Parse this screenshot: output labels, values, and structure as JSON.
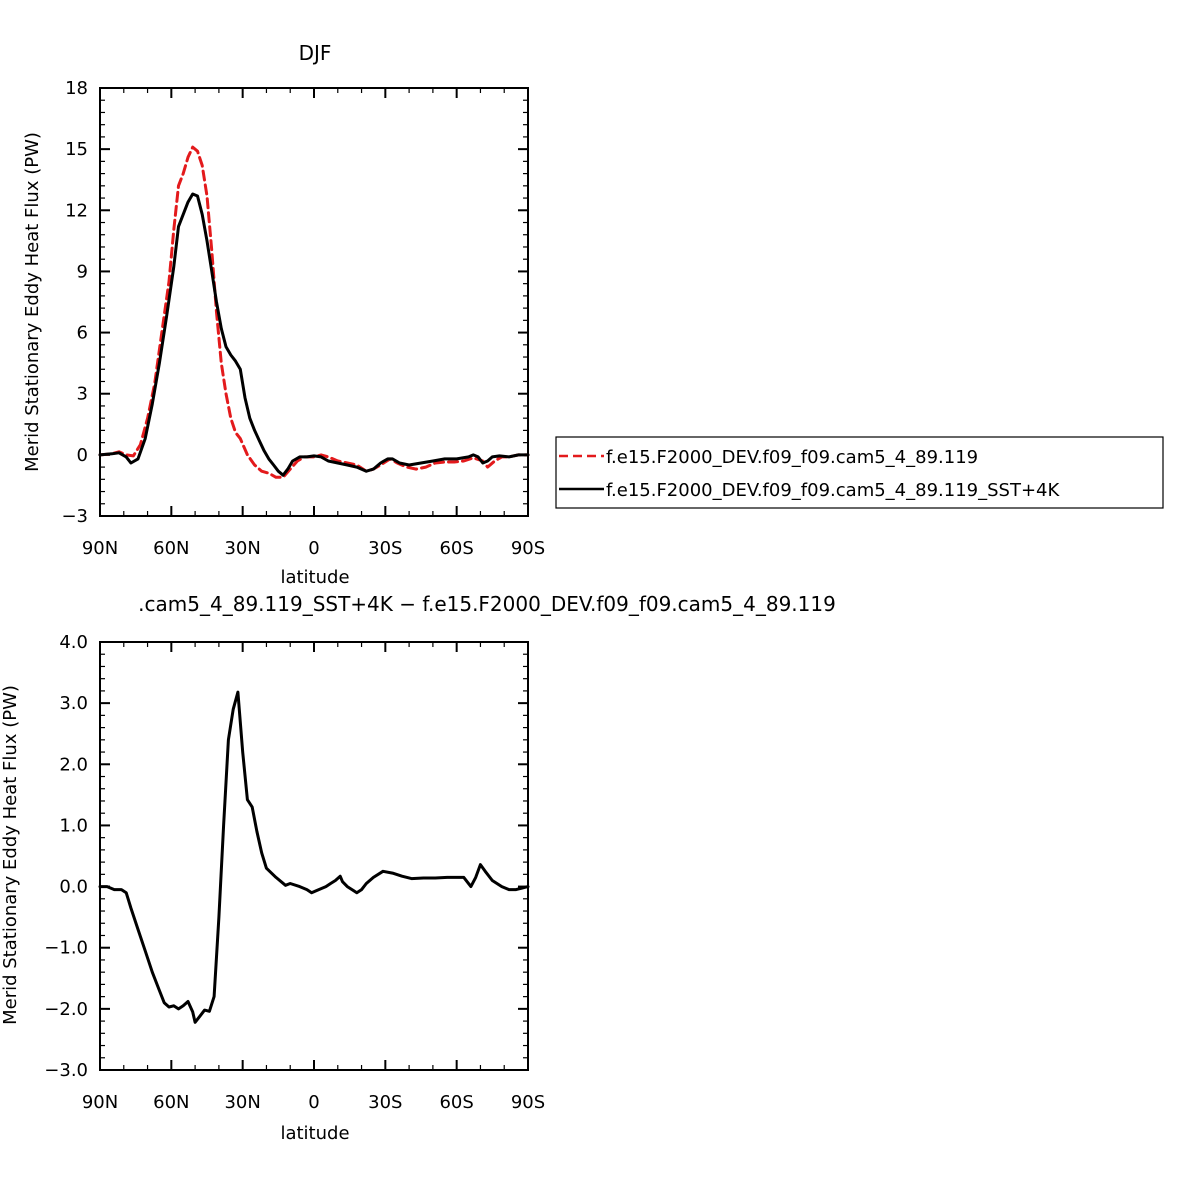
{
  "chart_data": [
    {
      "type": "line",
      "title": "DJF",
      "xlabel": "latitude",
      "ylabel": "Merid Stationary Eddy Heat Flux (PW)",
      "xlim": [
        90,
        -90
      ],
      "ylim": [
        -3,
        18
      ],
      "x_ticks": [
        90,
        60,
        30,
        0,
        -30,
        -60,
        -90
      ],
      "x_tick_labels": [
        "90N",
        "60N",
        "30N",
        "0",
        "30S",
        "60S",
        "90S"
      ],
      "y_ticks": [
        -3,
        0,
        3,
        6,
        9,
        12,
        15,
        18
      ],
      "y_tick_labels": [
        "−3",
        "0",
        "3",
        "6",
        "9",
        "12",
        "15",
        "18"
      ],
      "grid": false,
      "legend_position": "right",
      "series": [
        {
          "name": "f.e15.F2000_DEV.f09_f09.cam5_4_89.119",
          "color": "#e31a1c",
          "dash": "dashed",
          "points": [
            [
              90,
              0
            ],
            [
              85,
              0.05
            ],
            [
              82,
              0.15
            ],
            [
              79,
              0
            ],
            [
              76,
              -0.05
            ],
            [
              73,
              0.5
            ],
            [
              70,
              1.8
            ],
            [
              67,
              3.5
            ],
            [
              64,
              6
            ],
            [
              61,
              8.5
            ],
            [
              59,
              11
            ],
            [
              57,
              13.2
            ],
            [
              55,
              13.8
            ],
            [
              53,
              14.6
            ],
            [
              51,
              15.1
            ],
            [
              49,
              14.9
            ],
            [
              47,
              14.2
            ],
            [
              45,
              12.7
            ],
            [
              43,
              10
            ],
            [
              41,
              7
            ],
            [
              39,
              4.5
            ],
            [
              37,
              3
            ],
            [
              35,
              1.8
            ],
            [
              33,
              1.1
            ],
            [
              31,
              0.8
            ],
            [
              28,
              0
            ],
            [
              25,
              -0.5
            ],
            [
              22,
              -0.8
            ],
            [
              19,
              -0.9
            ],
            [
              16,
              -1.1
            ],
            [
              13,
              -1.1
            ],
            [
              10,
              -0.7
            ],
            [
              7,
              -0.3
            ],
            [
              4,
              -0.1
            ],
            [
              0,
              -0.1
            ],
            [
              -3,
              0
            ],
            [
              -6,
              -0.1
            ],
            [
              -10,
              -0.3
            ],
            [
              -14,
              -0.4
            ],
            [
              -18,
              -0.5
            ],
            [
              -22,
              -0.8
            ],
            [
              -25,
              -0.7
            ],
            [
              -28,
              -0.5
            ],
            [
              -32,
              -0.2
            ],
            [
              -35,
              -0.4
            ],
            [
              -39,
              -0.6
            ],
            [
              -43,
              -0.7
            ],
            [
              -47,
              -0.6
            ],
            [
              -51,
              -0.4
            ],
            [
              -55,
              -0.35
            ],
            [
              -59,
              -0.35
            ],
            [
              -63,
              -0.3
            ],
            [
              -67,
              -0.15
            ],
            [
              -71,
              -0.3
            ],
            [
              -73,
              -0.6
            ],
            [
              -76,
              -0.3
            ],
            [
              -79,
              -0.1
            ],
            [
              -82,
              -0.1
            ],
            [
              -86,
              0
            ],
            [
              -90,
              0
            ]
          ]
        },
        {
          "name": "f.e15.F2000_DEV.f09_f09.cam5_4_89.119_SST+4K",
          "color": "#000000",
          "dash": "solid",
          "points": [
            [
              90,
              0
            ],
            [
              85,
              0.05
            ],
            [
              82,
              0.1
            ],
            [
              79,
              -0.1
            ],
            [
              77,
              -0.4
            ],
            [
              74,
              -0.2
            ],
            [
              71,
              0.8
            ],
            [
              68,
              2.5
            ],
            [
              65,
              4.5
            ],
            [
              62,
              6.8
            ],
            [
              59,
              9.2
            ],
            [
              57,
              11.2
            ],
            [
              55,
              11.8
            ],
            [
              53,
              12.4
            ],
            [
              51,
              12.8
            ],
            [
              49,
              12.7
            ],
            [
              47,
              11.8
            ],
            [
              45,
              10.5
            ],
            [
              43,
              9
            ],
            [
              41,
              7.5
            ],
            [
              39,
              6.2
            ],
            [
              37,
              5.3
            ],
            [
              35,
              4.9
            ],
            [
              33,
              4.6
            ],
            [
              31,
              4.2
            ],
            [
              29,
              2.8
            ],
            [
              27,
              1.8
            ],
            [
              25,
              1.2
            ],
            [
              23,
              0.7
            ],
            [
              21,
              0.2
            ],
            [
              19,
              -0.2
            ],
            [
              17,
              -0.5
            ],
            [
              15,
              -0.8
            ],
            [
              13,
              -1
            ],
            [
              11,
              -0.7
            ],
            [
              9,
              -0.3
            ],
            [
              6,
              -0.1
            ],
            [
              3,
              -0.1
            ],
            [
              0,
              -0.05
            ],
            [
              -3,
              -0.1
            ],
            [
              -6,
              -0.3
            ],
            [
              -10,
              -0.4
            ],
            [
              -14,
              -0.5
            ],
            [
              -18,
              -0.6
            ],
            [
              -22,
              -0.8
            ],
            [
              -25,
              -0.7
            ],
            [
              -28,
              -0.4
            ],
            [
              -31,
              -0.2
            ],
            [
              -33,
              -0.2
            ],
            [
              -36,
              -0.4
            ],
            [
              -40,
              -0.5
            ],
            [
              -45,
              -0.4
            ],
            [
              -50,
              -0.3
            ],
            [
              -55,
              -0.2
            ],
            [
              -60,
              -0.2
            ],
            [
              -65,
              -0.1
            ],
            [
              -67,
              0
            ],
            [
              -69,
              -0.1
            ],
            [
              -71,
              -0.4
            ],
            [
              -73,
              -0.3
            ],
            [
              -75,
              -0.1
            ],
            [
              -78,
              -0.05
            ],
            [
              -82,
              -0.1
            ],
            [
              -86,
              0
            ],
            [
              -90,
              0
            ]
          ]
        }
      ]
    },
    {
      "type": "line",
      "title": ".cam5_4_89.119_SST+4K − f.e15.F2000_DEV.f09_f09.cam5_4_89.119",
      "xlabel": "latitude",
      "ylabel": "Merid Stationary Eddy Heat Flux (PW)",
      "xlim": [
        90,
        -90
      ],
      "ylim": [
        -3,
        4
      ],
      "x_ticks": [
        90,
        60,
        30,
        0,
        -30,
        -60,
        -90
      ],
      "x_tick_labels": [
        "90N",
        "60N",
        "30N",
        "0",
        "30S",
        "60S",
        "90S"
      ],
      "y_ticks": [
        -3,
        -2,
        -1,
        0,
        1,
        2,
        3,
        4
      ],
      "y_tick_labels": [
        "−3.0",
        "−2.0",
        "−1.0",
        "0.0",
        "1.0",
        "2.0",
        "3.0",
        "4.0"
      ],
      "grid": false,
      "series": [
        {
          "color": "#000000",
          "dash": "solid",
          "points": [
            [
              90,
              0
            ],
            [
              87,
              0
            ],
            [
              84,
              -0.05
            ],
            [
              81,
              -0.05
            ],
            [
              79,
              -0.1
            ],
            [
              77,
              -0.35
            ],
            [
              74,
              -0.7
            ],
            [
              71,
              -1.05
            ],
            [
              68,
              -1.4
            ],
            [
              65,
              -1.7
            ],
            [
              63,
              -1.9
            ],
            [
              61,
              -1.97
            ],
            [
              59,
              -1.95
            ],
            [
              57,
              -2
            ],
            [
              55,
              -1.95
            ],
            [
              53,
              -1.88
            ],
            [
              51,
              -2.05
            ],
            [
              50,
              -2.22
            ],
            [
              48,
              -2.12
            ],
            [
              46,
              -2.02
            ],
            [
              44,
              -2.04
            ],
            [
              42,
              -1.8
            ],
            [
              40,
              -0.5
            ],
            [
              38,
              1
            ],
            [
              36,
              2.4
            ],
            [
              34,
              2.9
            ],
            [
              32,
              3.18
            ],
            [
              30,
              2.2
            ],
            [
              28,
              1.42
            ],
            [
              26,
              1.3
            ],
            [
              24,
              0.9
            ],
            [
              22,
              0.55
            ],
            [
              20,
              0.3
            ],
            [
              16,
              0.15
            ],
            [
              12,
              0.02
            ],
            [
              10,
              0.05
            ],
            [
              6,
              0
            ],
            [
              3,
              -0.05
            ],
            [
              1,
              -0.1
            ],
            [
              -2,
              -0.05
            ],
            [
              -5,
              0
            ],
            [
              -7,
              0.05
            ],
            [
              -9,
              0.1
            ],
            [
              -11,
              0.17
            ],
            [
              -12,
              0.08
            ],
            [
              -14,
              0
            ],
            [
              -16,
              -0.05
            ],
            [
              -18,
              -0.1
            ],
            [
              -20,
              -0.05
            ],
            [
              -22,
              0.05
            ],
            [
              -25,
              0.15
            ],
            [
              -29,
              0.25
            ],
            [
              -33,
              0.22
            ],
            [
              -37,
              0.17
            ],
            [
              -41,
              0.13
            ],
            [
              -46,
              0.14
            ],
            [
              -51,
              0.14
            ],
            [
              -56,
              0.15
            ],
            [
              -61,
              0.15
            ],
            [
              -63,
              0.15
            ],
            [
              -66,
              0
            ],
            [
              -68,
              0.15
            ],
            [
              -70,
              0.36
            ],
            [
              -72,
              0.25
            ],
            [
              -75,
              0.1
            ],
            [
              -79,
              0
            ],
            [
              -82,
              -0.05
            ],
            [
              -85,
              -0.05
            ],
            [
              -90,
              0
            ]
          ]
        }
      ]
    }
  ]
}
